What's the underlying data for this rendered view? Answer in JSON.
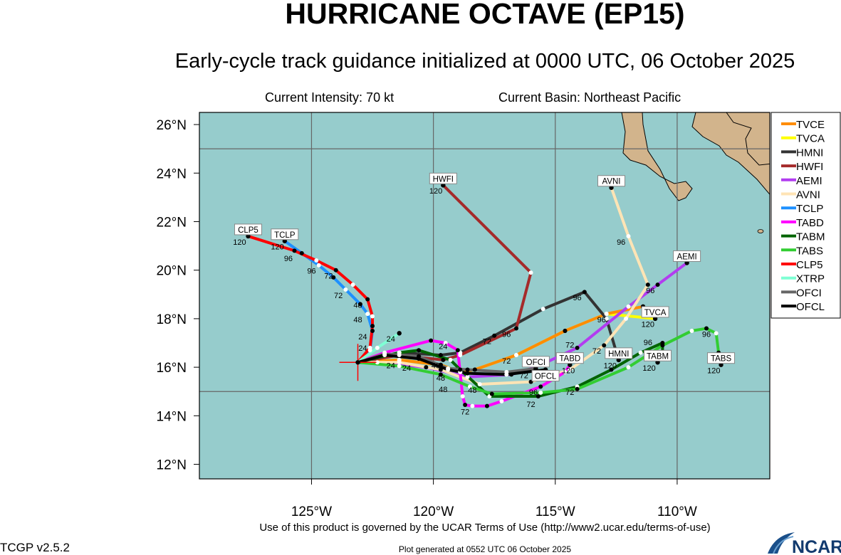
{
  "header": {
    "title": "HURRICANE OCTAVE (EP15)",
    "subtitle": "Early-cycle track guidance initialized at 0000 UTC, 06 October 2025",
    "intensity": "Current Intensity: 70 kt",
    "basin": "Current Basin: Northeast Pacific"
  },
  "footer": {
    "terms": "Use of this product is governed by the UCAR Terms of Use (http://www2.ucar.edu/terms-of-use)",
    "version": "TCGP v2.5.2",
    "generated": "Plot generated at 0552 UTC   06 October 2025",
    "logo": "NCAR"
  },
  "colors": {
    "ocean": "#96cccc",
    "land": "#d2b48c",
    "start_marker": "#ff0000"
  },
  "chart_data": {
    "type": "map-track",
    "xlim": [
      -129.6,
      -106.2
    ],
    "ylim": [
      11.4,
      26.5
    ],
    "lat_ticks": [
      {
        "v": 26,
        "label": "26°N"
      },
      {
        "v": 24,
        "label": "24°N"
      },
      {
        "v": 22,
        "label": "22°N"
      },
      {
        "v": 20,
        "label": "20°N"
      },
      {
        "v": 18,
        "label": "18°N"
      },
      {
        "v": 16,
        "label": "16°N"
      },
      {
        "v": 14,
        "label": "14°N"
      },
      {
        "v": 12,
        "label": "12°N"
      }
    ],
    "lon_ticks": [
      {
        "v": -125,
        "label": "125°W"
      },
      {
        "v": -120,
        "label": "120°W"
      },
      {
        "v": -115,
        "label": "115°W"
      },
      {
        "v": -110,
        "label": "110°W"
      }
    ],
    "grid_lon": [
      -125,
      -120,
      -115,
      -110
    ],
    "grid_lat": [
      25,
      15
    ],
    "initial_position": {
      "lat": 16.2,
      "lon": -123.1
    },
    "legend_position": "right",
    "tracks": [
      {
        "name": "TVCA",
        "color": "#ffff00",
        "label": "TVCA",
        "points": [
          [
            16.2,
            -123.1
          ],
          [
            16.3,
            -121.4
          ],
          [
            16.1,
            -119.7
          ],
          [
            15.8,
            -118.9
          ],
          [
            15.9,
            -118.3
          ],
          [
            16.5,
            -116.6
          ],
          [
            17.5,
            -114.6
          ],
          [
            18.2,
            -112.9
          ],
          [
            18.0,
            -110.9
          ]
        ]
      },
      {
        "name": "TVCE",
        "color": "#ff8c00",
        "label": "",
        "points": [
          [
            16.2,
            -123.1
          ],
          [
            16.3,
            -121.4
          ],
          [
            16.1,
            -119.7
          ],
          [
            15.8,
            -118.9
          ],
          [
            15.9,
            -118.3
          ],
          [
            16.5,
            -116.6
          ],
          [
            17.5,
            -114.6
          ],
          [
            18.2,
            -112.9
          ],
          [
            18.5,
            -111.4
          ]
        ]
      },
      {
        "name": "HMNI",
        "color": "#333333",
        "label": "HMNI",
        "points": [
          [
            16.2,
            -123.1
          ],
          [
            16.6,
            -121.4
          ],
          [
            16.5,
            -119.7
          ],
          [
            16.6,
            -118.9
          ],
          [
            17.3,
            -117.5
          ],
          [
            18.4,
            -115.5
          ],
          [
            19.1,
            -113.8
          ],
          [
            18.0,
            -112.9
          ],
          [
            16.3,
            -112.4
          ]
        ]
      },
      {
        "name": "HWFI",
        "color": "#a52a2a",
        "label": "HWFI",
        "points": [
          [
            16.2,
            -123.1
          ],
          [
            16.5,
            -121.4
          ],
          [
            16.3,
            -119.6
          ],
          [
            16.5,
            -118.9
          ],
          [
            17.6,
            -116.6
          ],
          [
            19.9,
            -116.0
          ],
          [
            23.5,
            -119.6
          ]
        ]
      },
      {
        "name": "AEMI",
        "color": "#b23cf0",
        "label": "AEMI",
        "points": [
          [
            16.2,
            -123.1
          ],
          [
            16.2,
            -122.3
          ],
          [
            16.0,
            -120.3
          ],
          [
            15.6,
            -118.6
          ],
          [
            15.7,
            -116.8
          ],
          [
            16.0,
            -115.8
          ],
          [
            16.8,
            -114.1
          ],
          [
            18.5,
            -112.0
          ],
          [
            19.4,
            -110.8
          ],
          [
            20.3,
            -109.6
          ]
        ]
      },
      {
        "name": "AVNI",
        "color": "#ffe4b5",
        "label": "AVNI",
        "points": [
          [
            16.2,
            -123.1
          ],
          [
            16.2,
            -121.4
          ],
          [
            15.9,
            -119.7
          ],
          [
            15.3,
            -118.1
          ],
          [
            15.4,
            -116.0
          ],
          [
            15.9,
            -114.4
          ],
          [
            16.9,
            -113.0
          ],
          [
            18.0,
            -112.1
          ],
          [
            19.4,
            -111.2
          ],
          [
            21.4,
            -112.0
          ],
          [
            23.4,
            -112.7
          ]
        ]
      },
      {
        "name": "TCLP",
        "color": "#1e90ff",
        "label": "TCLP",
        "points": [
          [
            16.2,
            -123.1
          ],
          [
            16.7,
            -122.6
          ],
          [
            17.5,
            -122.5
          ],
          [
            18.2,
            -122.7
          ],
          [
            18.6,
            -123.0
          ],
          [
            19.2,
            -123.6
          ],
          [
            19.7,
            -124.1
          ],
          [
            20.2,
            -124.7
          ],
          [
            20.7,
            -125.4
          ],
          [
            21.2,
            -126.1
          ]
        ]
      },
      {
        "name": "TABD",
        "color": "#ff00ff",
        "label": "TABD",
        "points": [
          [
            16.2,
            -123.1
          ],
          [
            16.6,
            -122.0
          ],
          [
            17.1,
            -120.1
          ],
          [
            17.0,
            -119.5
          ],
          [
            16.7,
            -119.0
          ],
          [
            14.8,
            -118.8
          ],
          [
            14.45,
            -118.7
          ],
          [
            14.4,
            -118.4
          ],
          [
            14.4,
            -117.8
          ],
          [
            14.6,
            -117.2
          ],
          [
            15.2,
            -115.6
          ],
          [
            15.8,
            -114.6
          ],
          [
            16.1,
            -114.4
          ]
        ]
      },
      {
        "name": "TABM",
        "color": "#006400",
        "label": "TABM",
        "points": [
          [
            16.2,
            -123.1
          ],
          [
            16.6,
            -121.4
          ],
          [
            16.7,
            -120.6
          ],
          [
            16.3,
            -119.3
          ],
          [
            15.9,
            -118.9
          ],
          [
            14.8,
            -117.7
          ],
          [
            14.8,
            -115.7
          ],
          [
            15.2,
            -114.1
          ],
          [
            15.9,
            -112.7
          ],
          [
            16.6,
            -111.5
          ],
          [
            17.0,
            -110.6
          ],
          [
            16.6,
            -110.6
          ],
          [
            16.2,
            -110.8
          ]
        ]
      },
      {
        "name": "TABS",
        "color": "#32cd32",
        "label": "TABS",
        "points": [
          [
            16.2,
            -123.1
          ],
          [
            16.05,
            -121.4
          ],
          [
            15.7,
            -119.7
          ],
          [
            15.2,
            -118.5
          ],
          [
            14.9,
            -117.6
          ],
          [
            14.95,
            -115.6
          ],
          [
            15.1,
            -114.1
          ],
          [
            16.0,
            -112.0
          ],
          [
            16.9,
            -110.6
          ],
          [
            17.5,
            -109.4
          ],
          [
            17.6,
            -108.8
          ],
          [
            17.4,
            -108.4
          ],
          [
            16.6,
            -108.3
          ],
          [
            16.1,
            -108.2
          ]
        ]
      },
      {
        "name": "CLP5",
        "color": "#ff0000",
        "label": "CLP5",
        "points": [
          [
            16.2,
            -123.1
          ],
          [
            16.8,
            -122.6
          ],
          [
            17.7,
            -122.5
          ],
          [
            18.1,
            -122.5
          ],
          [
            18.8,
            -122.7
          ],
          [
            19.4,
            -123.3
          ],
          [
            20.0,
            -124.0
          ],
          [
            20.4,
            -124.8
          ],
          [
            20.8,
            -125.7
          ],
          [
            21.4,
            -127.6
          ]
        ]
      },
      {
        "name": "XTRP",
        "color": "#7fffd4",
        "label": "",
        "points": [
          [
            16.2,
            -123.1
          ],
          [
            16.8,
            -122.3
          ],
          [
            17.4,
            -121.4
          ]
        ]
      },
      {
        "name": "OFCI",
        "color": "#666666",
        "label": "OFCI",
        "points": [
          [
            16.2,
            -123.1
          ],
          [
            16.55,
            -122.0
          ],
          [
            16.45,
            -120.6
          ],
          [
            15.95,
            -119.4
          ],
          [
            15.9,
            -118.6
          ],
          [
            15.8,
            -117.0
          ],
          [
            15.95,
            -115.8
          ]
        ]
      },
      {
        "name": "OFCL",
        "color": "#000000",
        "label": "OFCL",
        "points": [
          [
            16.2,
            -123.1
          ],
          [
            16.5,
            -122.0
          ],
          [
            16.35,
            -120.6
          ],
          [
            15.9,
            -119.4
          ],
          [
            15.75,
            -118.6
          ],
          [
            15.7,
            -117.0
          ],
          [
            15.9,
            -115.4
          ]
        ]
      }
    ],
    "legend": [
      "TVCE",
      "TVCA",
      "HMNI",
      "HWFI",
      "AEMI",
      "AVNI",
      "TCLP",
      "TABD",
      "TABM",
      "TABS",
      "CLP5",
      "XTRP",
      "OFCI",
      "OFCL"
    ],
    "tau_labels": [
      {
        "t": "120",
        "lat": 21.2,
        "lon": -127.95
      },
      {
        "t": "120",
        "lat": 21.0,
        "lon": -126.4
      },
      {
        "t": "120",
        "lat": 23.3,
        "lon": -119.9
      },
      {
        "t": "120",
        "lat": 17.8,
        "lon": -111.2
      },
      {
        "t": "120",
        "lat": 16.1,
        "lon": -112.75
      },
      {
        "t": "120",
        "lat": 16.0,
        "lon": -111.15
      },
      {
        "t": "120",
        "lat": 15.9,
        "lon": -108.5
      },
      {
        "t": "120",
        "lat": 15.9,
        "lon": -114.7
      },
      {
        "t": "96",
        "lat": 20.6,
        "lon": -125.95
      },
      {
        "t": "96",
        "lat": 20.0,
        "lon": -125.0
      },
      {
        "t": "96",
        "lat": 21.2,
        "lon": -112.3
      },
      {
        "t": "96",
        "lat": 19.2,
        "lon": -111.1
      },
      {
        "t": "96",
        "lat": 17.4,
        "lon": -117.0
      },
      {
        "t": "96",
        "lat": 18.9,
        "lon": -114.1
      },
      {
        "t": "96",
        "lat": 18.0,
        "lon": -113.1
      },
      {
        "t": "96",
        "lat": 16.7,
        "lon": -111.2
      },
      {
        "t": "96",
        "lat": 17.4,
        "lon": -108.8
      },
      {
        "t": "96",
        "lat": 15.0,
        "lon": -115.9
      },
      {
        "t": "72",
        "lat": 19.8,
        "lon": -124.3
      },
      {
        "t": "72",
        "lat": 19.0,
        "lon": -123.9
      },
      {
        "t": "72",
        "lat": 17.1,
        "lon": -117.8
      },
      {
        "t": "72",
        "lat": 16.3,
        "lon": -117.0
      },
      {
        "t": "72",
        "lat": 16.6,
        "lon": -114.4
      },
      {
        "t": "72",
        "lat": 16.7,
        "lon": -113.3
      },
      {
        "t": "72",
        "lat": 15.7,
        "lon": -115.7
      },
      {
        "t": "72",
        "lat": 14.2,
        "lon": -118.7
      },
      {
        "t": "72",
        "lat": 14.6,
        "lon": -116.0
      },
      {
        "t": "72",
        "lat": 15.0,
        "lon": -114.4
      },
      {
        "t": "48",
        "lat": 18.6,
        "lon": -123.1
      },
      {
        "t": "48",
        "lat": 18.0,
        "lon": -123.1
      },
      {
        "t": "48",
        "lat": 15.6,
        "lon": -119.7
      },
      {
        "t": "48",
        "lat": 15.3,
        "lon": -119.6
      },
      {
        "t": "48",
        "lat": 15.1,
        "lon": -118.4
      },
      {
        "t": "48",
        "lat": 16.1,
        "lon": -119.9
      },
      {
        "t": "24",
        "lat": 17.3,
        "lon": -122.9
      },
      {
        "t": "24",
        "lat": 17.0,
        "lon": -122.9
      },
      {
        "t": "24",
        "lat": 17.2,
        "lon": -121.75
      },
      {
        "t": "24",
        "lat": 16.9,
        "lon": -119.6
      },
      {
        "t": "24",
        "lat": 16.1,
        "lon": -121.75
      },
      {
        "t": "24",
        "lat": 16.0,
        "lon": -121.1
      }
    ]
  }
}
